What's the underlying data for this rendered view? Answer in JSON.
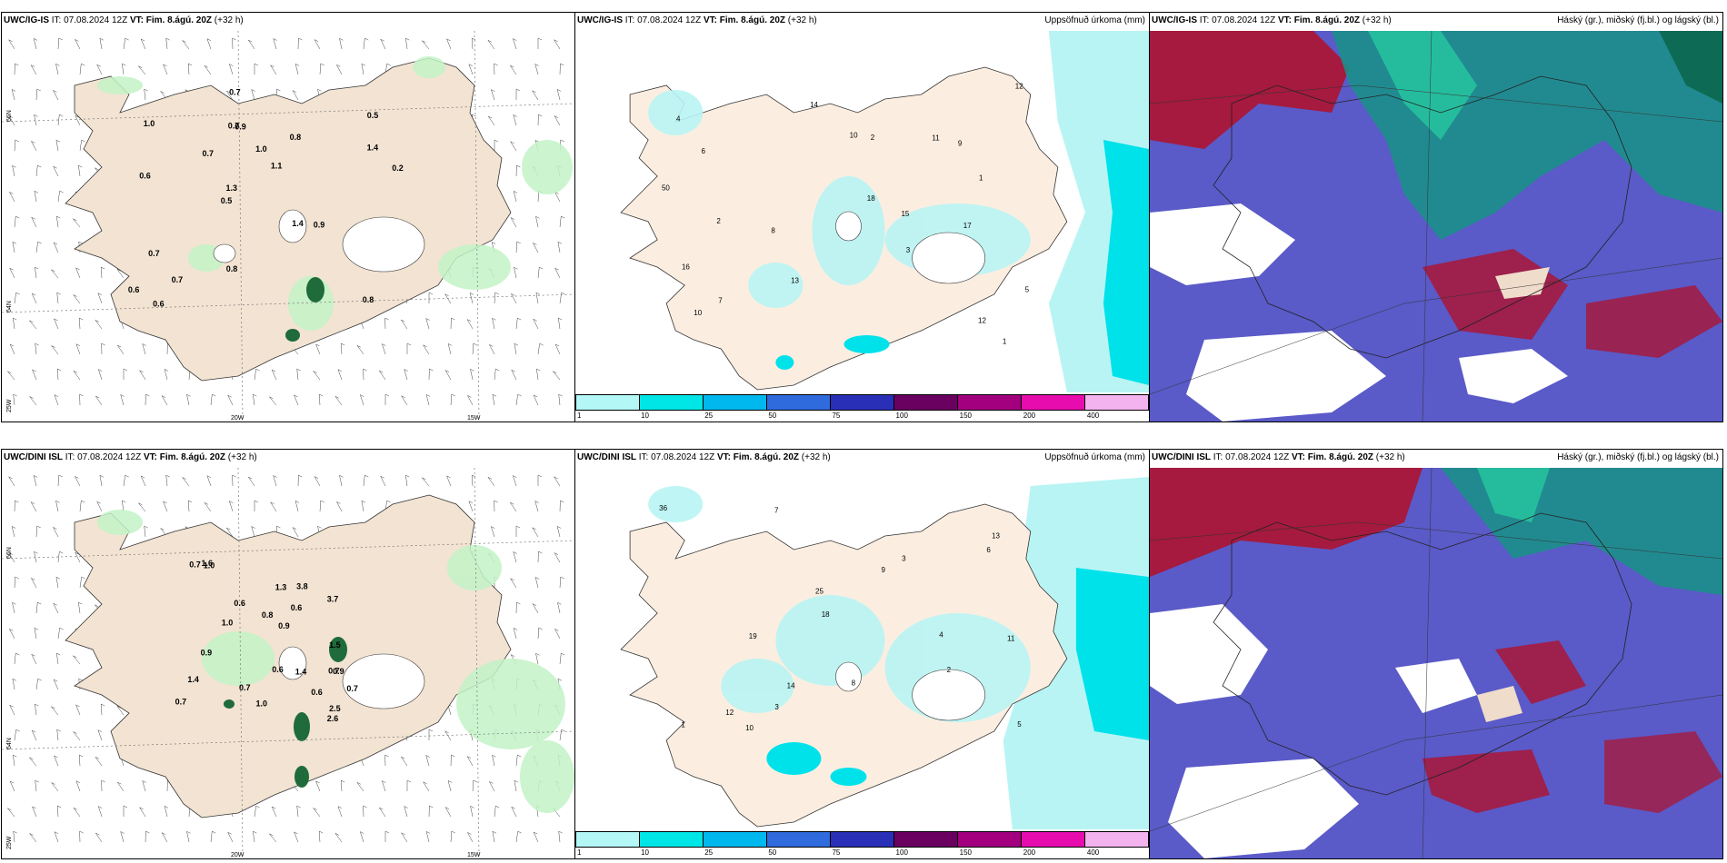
{
  "rows": [
    {
      "model": "UWC/IG-IS",
      "it_label": "IT:",
      "it_value": "07.08.2024 12Z",
      "vt_label": "VT:",
      "vt_value": "Fim. 8.ágú. 20Z",
      "lead": "(+32 h)",
      "panel2_right": "Uppsöfnuð úrkoma (mm)",
      "panel3_right": "Háský (gr.), miðský (fj.bl.) og lágský (bl.)",
      "lat_labels": [
        "66N",
        "64N",
        "25W"
      ],
      "lon_labels": [
        "20W",
        "15W"
      ],
      "panel1_values": [
        "0.8",
        "0.6",
        "0.5",
        "0.5",
        "0.8",
        "0.6",
        "0.7",
        "1.0",
        "0.7",
        "0.7",
        "0.6",
        "0.7",
        "0.9",
        "1.1",
        "0.9",
        "1.0",
        "0.7",
        "0.2",
        "1.4",
        "1.4",
        "1.3",
        "0.8"
      ],
      "panel2_values": [
        "1",
        "2",
        "3",
        "4",
        "5",
        "6",
        "7",
        "8",
        "9",
        "10",
        "11",
        "12",
        "13",
        "14",
        "15",
        "16",
        "17",
        "18",
        "50",
        "10",
        "12",
        "2",
        "1"
      ]
    },
    {
      "model": "UWC/DINI ISL",
      "it_label": "IT:",
      "it_value": "07.08.2024 12Z",
      "vt_label": "VT:",
      "vt_value": "Fim. 8.ágú. 20Z",
      "lead": "(+32 h)",
      "panel2_right": "Uppsöfnuð úrkoma (mm)",
      "panel3_right": "Háský (gr.), miðský (fj.bl.) og lágský (bl.)",
      "lat_labels": [
        "66N",
        "64N",
        "25W"
      ],
      "lon_labels": [
        "20W",
        "15W"
      ],
      "panel1_values": [
        "1.4",
        "0.9",
        "0.7",
        "0.7",
        "1.3",
        "0.6",
        "0.8",
        "0.6",
        "0.9",
        "0.7",
        "1.0",
        "0.6",
        "1.5",
        "1.0",
        "0.7",
        "0.7",
        "2.6",
        "3.7",
        "2.5",
        "1.4",
        "0.9",
        "3.8",
        "1.0",
        "0.6",
        "1.6"
      ],
      "panel2_values": [
        "1",
        "2",
        "3",
        "4",
        "5",
        "6",
        "7",
        "8",
        "9",
        "10",
        "11",
        "12",
        "13",
        "14",
        "36",
        "25",
        "19",
        "18",
        "3"
      ]
    }
  ],
  "colorbar": {
    "ticks": [
      "1",
      "10",
      "25",
      "50",
      "75",
      "100",
      "150",
      "200",
      "400"
    ],
    "colors": [
      "#b3f7f7",
      "#00e5e5",
      "#00b8ee",
      "#2f6bdd",
      "#2a2fb8",
      "#6a0060",
      "#a2007f",
      "#e60cad",
      "#f3b3ef"
    ]
  },
  "colors": {
    "land": "#f4e7d8",
    "precip_light": "#b8f3c0",
    "precip_dark": "#0d5a2c",
    "accum_light": "#b9f4f4",
    "accum_mid": "#00e0e8",
    "cloud_high": "#a1173a",
    "cloud_mid": "#1aa888",
    "cloud_low": "#5252c8"
  }
}
